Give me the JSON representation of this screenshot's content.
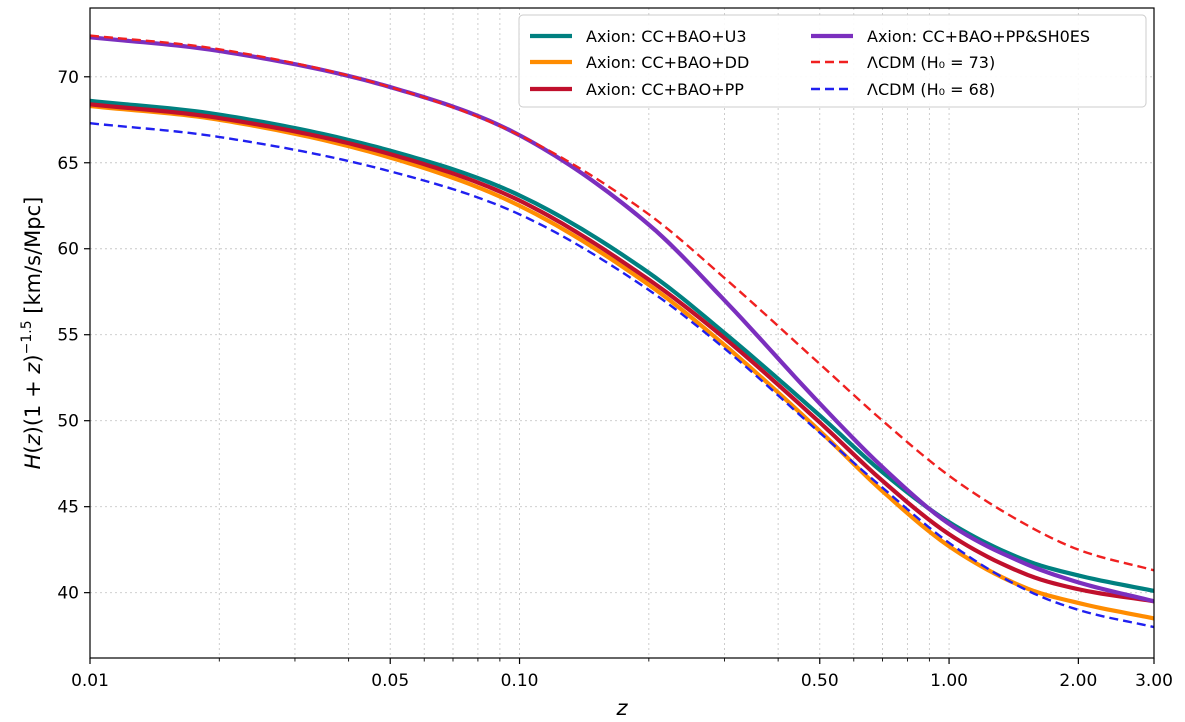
{
  "chart_data": {
    "type": "line",
    "xscale": "log",
    "xlim": [
      0.01,
      3.0
    ],
    "ylim": [
      36.2,
      74.0
    ],
    "xlabel": "z",
    "ylabel": "H(z)(1 + z)^{-1.5} [km/s/Mpc]",
    "xticks": [
      {
        "value": 0.01,
        "label": "0.01"
      },
      {
        "value": 0.05,
        "label": "0.05"
      },
      {
        "value": 0.1,
        "label": "0.10"
      },
      {
        "value": 0.5,
        "label": "0.50"
      },
      {
        "value": 1.0,
        "label": "1.00"
      },
      {
        "value": 2.0,
        "label": "2.00"
      },
      {
        "value": 3.0,
        "label": "3.00"
      }
    ],
    "yticks": [
      40,
      45,
      50,
      55,
      60,
      65,
      70
    ],
    "grid": true,
    "legend": {
      "placement": "top-right",
      "columns": 2
    },
    "x": [
      0.01,
      0.02,
      0.05,
      0.1,
      0.2,
      0.3,
      0.5,
      0.7,
      1.0,
      1.5,
      2.0,
      3.0
    ],
    "series": [
      {
        "name": "Axion: CC+BAO+U3",
        "color": "#008080",
        "style": "solid",
        "values": [
          68.6,
          67.8,
          65.7,
          63.1,
          58.6,
          55.1,
          50.3,
          47.0,
          44.1,
          41.9,
          41.0,
          40.1
        ]
      },
      {
        "name": "Axion: CC+BAO+DD",
        "color": "#ff8c00",
        "style": "solid",
        "values": [
          68.3,
          67.5,
          65.3,
          62.5,
          57.9,
          54.4,
          49.4,
          45.9,
          42.7,
          40.3,
          39.4,
          38.5
        ]
      },
      {
        "name": "Axion: CC+BAO+PP",
        "color": "#c0102c",
        "style": "solid",
        "values": [
          68.4,
          67.6,
          65.5,
          62.8,
          58.2,
          54.8,
          49.9,
          46.5,
          43.4,
          41.1,
          40.2,
          39.5
        ]
      },
      {
        "name": "Axion: CC+BAO+PP&SH0ES",
        "color": "#7b2fbe",
        "style": "solid",
        "values": [
          72.3,
          71.5,
          69.4,
          66.6,
          61.4,
          57.0,
          51.0,
          47.3,
          44.0,
          41.7,
          40.6,
          39.5
        ]
      },
      {
        "name": "ΛCDM (H₀ = 73)",
        "color": "#f02020",
        "style": "dashed",
        "values": [
          72.4,
          71.6,
          69.4,
          66.6,
          62.0,
          58.3,
          53.3,
          50.0,
          46.8,
          44.0,
          42.5,
          41.3
        ]
      },
      {
        "name": "ΛCDM (H₀ = 68)",
        "color": "#2020f0",
        "style": "dashed",
        "values": [
          67.3,
          66.5,
          64.5,
          62.0,
          57.6,
          54.2,
          49.3,
          46.1,
          42.9,
          40.2,
          39.0,
          38.0
        ]
      }
    ]
  }
}
